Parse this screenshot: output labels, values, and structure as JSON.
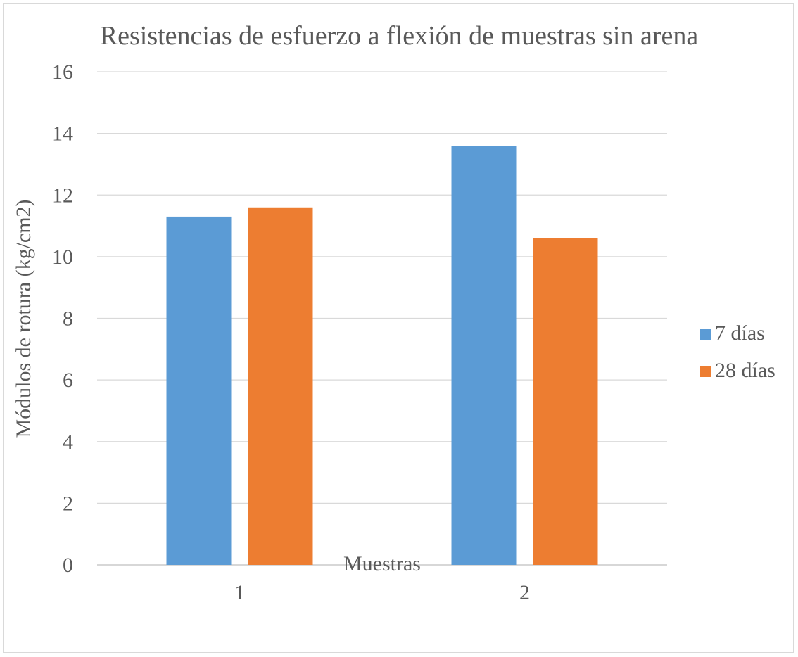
{
  "chart_data": {
    "type": "bar",
    "title": "Resistencias de esfuerzo a flexión de muestras sin arena",
    "xlabel": "Muestras",
    "ylabel": "Módulos de rotura (kg/cm2)",
    "categories": [
      "1",
      "2"
    ],
    "series": [
      {
        "name": "7 días",
        "values": [
          11.3,
          13.6
        ]
      },
      {
        "name": "28 días",
        "values": [
          11.6,
          10.6
        ]
      }
    ],
    "ylim": [
      0,
      16
    ],
    "yticks": [
      0,
      2,
      4,
      6,
      8,
      10,
      12,
      14,
      16
    ],
    "grid": true,
    "legend_position": "right"
  },
  "colors": {
    "series": [
      "#5b9bd5",
      "#ed7d31"
    ],
    "grid": "#d9d9d9",
    "axis": "#bfbfbf",
    "text": "#595959"
  }
}
